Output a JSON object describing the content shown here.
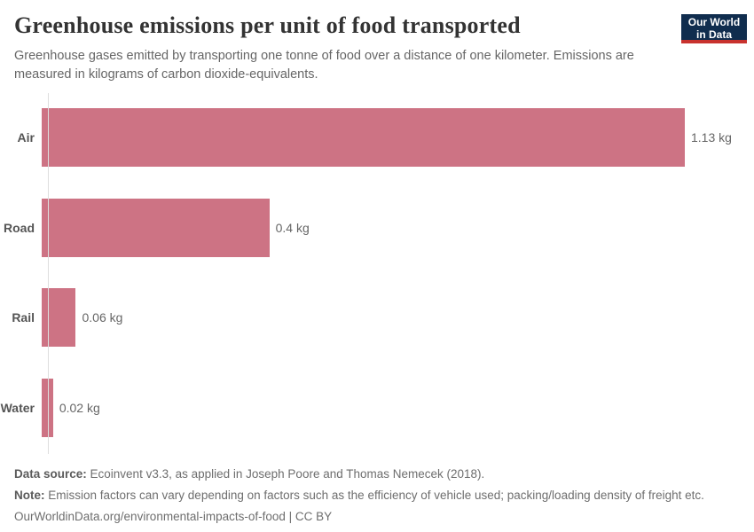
{
  "header": {
    "title": "Greenhouse emissions per unit of food transported",
    "subtitle": "Greenhouse gases emitted by transporting one tonne of food over a distance of one kilometer. Emissions are measured in kilograms of carbon dioxide-equivalents.",
    "logo": {
      "line1": "Our World",
      "line2": "in Data"
    }
  },
  "chart_data": {
    "type": "bar",
    "orientation": "horizontal",
    "title": "Greenhouse emissions per unit of food transported",
    "categories": [
      "Air",
      "Road",
      "Rail",
      "Water"
    ],
    "values": [
      1.13,
      0.4,
      0.06,
      0.02
    ],
    "value_labels": [
      "1.13 kg",
      "0.4 kg",
      "0.06 kg",
      "0.02 kg"
    ],
    "unit": "kg",
    "xlim": [
      0,
      1.13
    ],
    "grid": false,
    "legend_position": "none"
  },
  "footer": {
    "data_source_label": "Data source:",
    "data_source_text": " Ecoinvent v3.3, as applied in Joseph Poore and Thomas Nemecek (2018).",
    "note_label": "Note:",
    "note_text": " Emission factors can vary depending on factors such as the efficiency of vehicle used; packing/loading density of freight etc.",
    "license": "OurWorldinData.org/environmental-impacts-of-food | CC BY"
  },
  "colors": {
    "bar": "#cd7384",
    "axis_line": "#dedede",
    "title": "#333333",
    "text": "#666666",
    "logo_bg": "#102d4e",
    "logo_stripe": "#c8322e"
  }
}
